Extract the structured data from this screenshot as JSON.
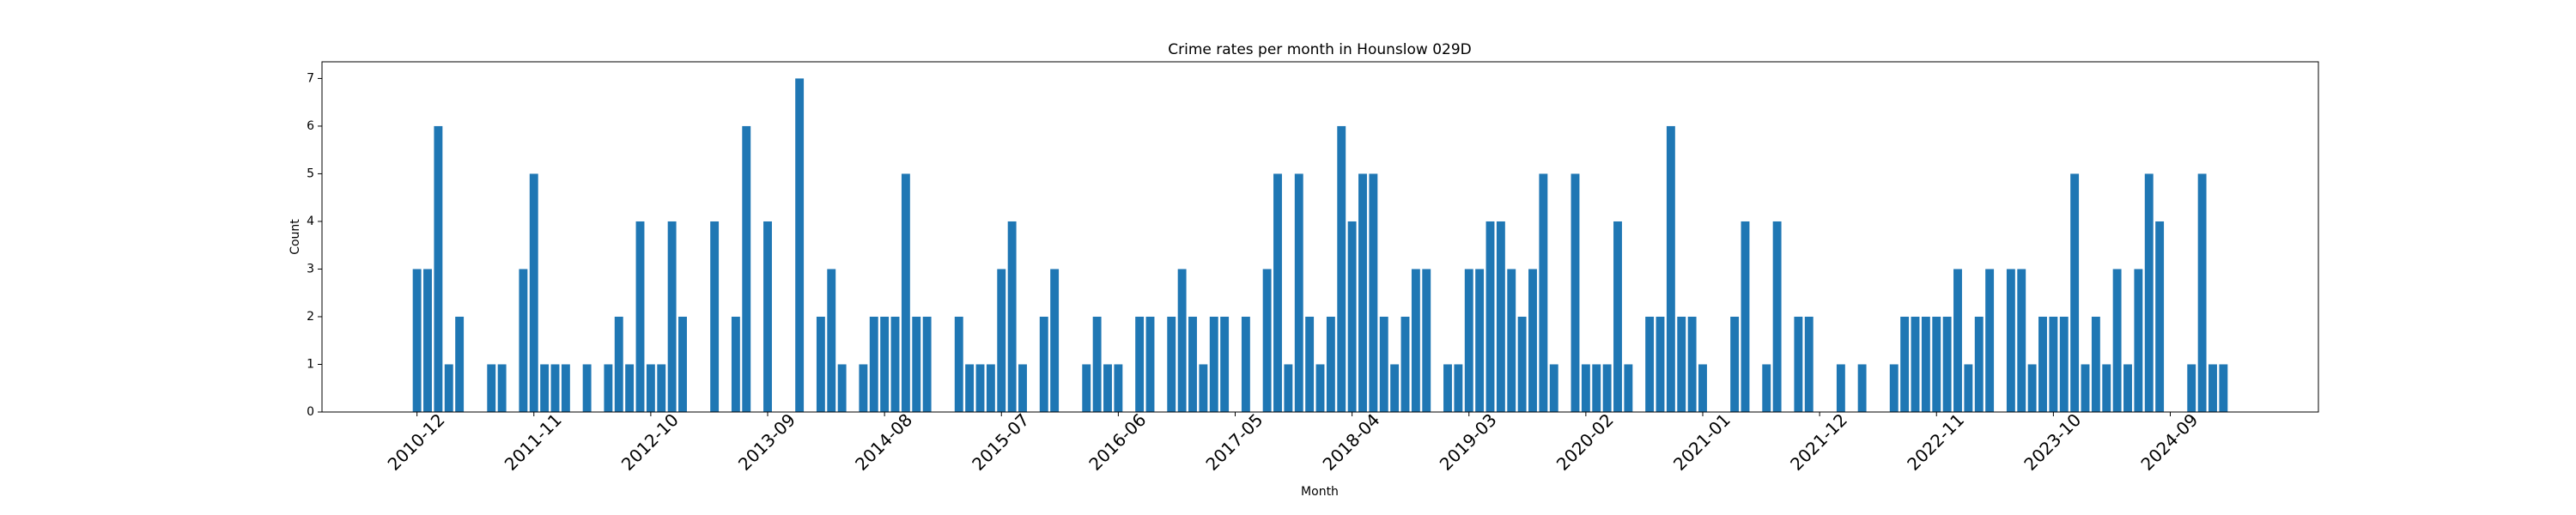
{
  "chart_data": {
    "type": "bar",
    "title": "Crime rates per month in Hounslow 029D",
    "x_label": "Month",
    "y_label": "Count",
    "color": "#1f77b4",
    "categories": [
      "2010-12",
      null,
      null,
      null,
      null,
      null,
      null,
      null,
      null,
      null,
      null,
      "2011-11",
      null,
      null,
      null,
      null,
      null,
      null,
      null,
      null,
      null,
      null,
      "2012-10",
      null,
      null,
      null,
      null,
      null,
      null,
      null,
      null,
      null,
      null,
      "2013-09",
      null,
      null,
      null,
      null,
      null,
      null,
      null,
      null,
      null,
      null,
      "2014-08",
      null,
      null,
      null,
      null,
      null,
      null,
      null,
      null,
      null,
      null,
      "2015-07",
      null,
      null,
      null,
      null,
      null,
      null,
      null,
      null,
      null,
      null,
      "2016-06",
      null,
      null,
      null,
      null,
      null,
      null,
      null,
      null,
      null,
      null,
      "2017-05",
      null,
      null,
      null,
      null,
      null,
      null,
      null,
      null,
      null,
      null,
      "2018-04",
      null,
      null,
      null,
      null,
      null,
      null,
      null,
      null,
      null,
      null,
      "2019-03",
      null,
      null,
      null,
      null,
      null,
      null,
      null,
      null,
      null,
      null,
      "2020-02",
      null,
      null,
      null,
      null,
      null,
      null,
      null,
      null,
      null,
      null,
      "2021-01",
      null,
      null,
      null,
      null,
      null,
      null,
      null,
      null,
      null,
      null,
      "2021-12",
      null,
      null,
      null,
      null,
      null,
      null,
      null,
      null,
      null,
      null,
      "2022-11",
      null,
      null,
      null,
      null,
      null,
      null,
      null,
      null,
      null,
      null,
      "2023-10",
      null,
      null,
      null,
      null,
      null,
      null,
      null,
      null,
      null,
      null,
      "2024-09",
      null,
      null,
      null,
      null,
      null
    ],
    "values": [
      3,
      3,
      6,
      1,
      2,
      0,
      0,
      1,
      1,
      0,
      3,
      5,
      1,
      1,
      1,
      0,
      1,
      0,
      1,
      2,
      1,
      4,
      1,
      1,
      4,
      2,
      0,
      0,
      4,
      0,
      2,
      6,
      0,
      4,
      0,
      0,
      7,
      0,
      2,
      3,
      1,
      0,
      1,
      2,
      2,
      2,
      5,
      2,
      2,
      0,
      0,
      2,
      1,
      1,
      1,
      3,
      4,
      1,
      0,
      2,
      3,
      0,
      0,
      1,
      2,
      1,
      1,
      0,
      2,
      2,
      0,
      2,
      3,
      2,
      1,
      2,
      2,
      0,
      2,
      0,
      3,
      5,
      1,
      5,
      2,
      1,
      2,
      6,
      4,
      5,
      5,
      2,
      1,
      2,
      3,
      3,
      0,
      1,
      1,
      3,
      3,
      4,
      4,
      3,
      2,
      3,
      5,
      1,
      0,
      5,
      1,
      1,
      1,
      4,
      1,
      0,
      2,
      2,
      6,
      2,
      2,
      1,
      0,
      0,
      2,
      4,
      0,
      1,
      4,
      0,
      2,
      2,
      0,
      0,
      1,
      0,
      1,
      0,
      0,
      1,
      2,
      2,
      2,
      2,
      2,
      3,
      1,
      2,
      3,
      0,
      3,
      3,
      1,
      2,
      2,
      2,
      5,
      1,
      2,
      1,
      3,
      1,
      3,
      5,
      4,
      0,
      0,
      1,
      5,
      1,
      1
    ],
    "ylim": [
      0,
      7.35
    ],
    "yticks": [
      0,
      1,
      2,
      3,
      4,
      5,
      6,
      7
    ]
  }
}
